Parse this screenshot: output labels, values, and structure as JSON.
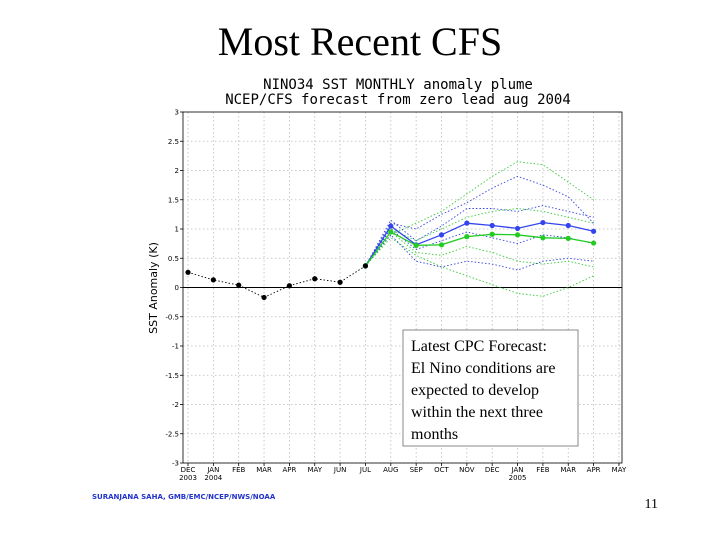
{
  "slide": {
    "title": "Most Recent CFS",
    "credit": "SURANJANA SAHA, GMB/EMC/NCEP/NWS/NOAA",
    "page_number": 11
  },
  "chart_data": {
    "type": "line",
    "title": "NINO34 SST MONTHLY anomaly plume",
    "subtitle": "NCEP/CFS forecast from zero lead aug 2004",
    "y_label": "SST Anomaly (K)",
    "categories": [
      "DEC",
      "JAN",
      "FEB",
      "MAR",
      "APR",
      "MAY",
      "JUN",
      "JUL",
      "AUG",
      "SEP",
      "OCT",
      "NOV",
      "DEC",
      "JAN",
      "FEB",
      "MAR",
      "APR",
      "MAY"
    ],
    "category_years": [
      "2003",
      "2004",
      null,
      null,
      null,
      null,
      null,
      null,
      null,
      null,
      null,
      null,
      null,
      "2005",
      null,
      null,
      null,
      null
    ],
    "ylim": [
      -3,
      3
    ],
    "yticks": [
      -3,
      -2.5,
      -2,
      -1.5,
      -1,
      -0.5,
      0,
      0.5,
      1,
      1.5,
      2,
      2.5,
      3
    ],
    "grid": true,
    "zero_line": true,
    "series": [
      {
        "color": "#33cc33",
        "style": "dotted",
        "markers": false,
        "values": [
          null,
          null,
          null,
          null,
          null,
          null,
          null,
          0.37,
          0.9,
          1.1,
          1.3,
          1.6,
          1.9,
          2.15,
          2.1,
          1.8,
          1.5,
          null
        ]
      },
      {
        "color": "#33cc33",
        "style": "dotted",
        "markers": false,
        "values": [
          null,
          null,
          null,
          null,
          null,
          null,
          null,
          0.37,
          0.85,
          0.55,
          0.35,
          0.2,
          0.05,
          -0.1,
          -0.15,
          0.0,
          0.2,
          null
        ]
      },
      {
        "color": "#33cc33",
        "style": "dotted",
        "markers": false,
        "values": [
          null,
          null,
          null,
          null,
          null,
          null,
          null,
          0.37,
          1.0,
          0.8,
          1.0,
          1.2,
          1.3,
          1.35,
          1.3,
          1.2,
          1.1,
          null
        ]
      },
      {
        "color": "#33cc33",
        "style": "dotted",
        "markers": false,
        "values": [
          null,
          null,
          null,
          null,
          null,
          null,
          null,
          0.37,
          0.95,
          0.6,
          0.55,
          0.7,
          0.6,
          0.45,
          0.4,
          0.45,
          0.35,
          null
        ]
      },
      {
        "color": "#3344dd",
        "style": "dotted",
        "markers": false,
        "values": [
          null,
          null,
          null,
          null,
          null,
          null,
          null,
          0.37,
          1.1,
          1.0,
          1.25,
          1.45,
          1.7,
          1.9,
          1.75,
          1.55,
          1.1,
          null
        ]
      },
      {
        "color": "#3344dd",
        "style": "dotted",
        "markers": false,
        "values": [
          null,
          null,
          null,
          null,
          null,
          null,
          null,
          0.37,
          0.9,
          0.45,
          0.35,
          0.45,
          0.4,
          0.3,
          0.45,
          0.5,
          0.45,
          null
        ]
      },
      {
        "color": "#3344dd",
        "style": "dotted",
        "markers": false,
        "values": [
          null,
          null,
          null,
          null,
          null,
          null,
          null,
          0.37,
          1.15,
          0.8,
          1.05,
          1.35,
          1.35,
          1.3,
          1.4,
          1.3,
          1.2,
          null
        ]
      },
      {
        "color": "#3344dd",
        "style": "dotted",
        "markers": false,
        "values": [
          null,
          null,
          null,
          null,
          null,
          null,
          null,
          0.37,
          1.0,
          0.65,
          0.8,
          0.95,
          0.85,
          0.75,
          0.9,
          0.85,
          0.75,
          null
        ]
      },
      {
        "color": "#3344ee",
        "style": "solid",
        "markers": true,
        "values": [
          null,
          null,
          null,
          null,
          null,
          null,
          null,
          0.37,
          1.05,
          0.73,
          0.9,
          1.1,
          1.06,
          1.01,
          1.11,
          1.06,
          0.96,
          null
        ]
      },
      {
        "color": "#22cc22",
        "style": "solid",
        "markers": true,
        "values": [
          null,
          null,
          null,
          null,
          null,
          null,
          null,
          0.37,
          0.95,
          0.72,
          0.73,
          0.87,
          0.91,
          0.9,
          0.85,
          0.84,
          0.76,
          null
        ]
      },
      {
        "color": "#000000",
        "style": "dotted",
        "markers": true,
        "values": [
          0.26,
          0.13,
          0.04,
          -0.17,
          0.03,
          0.15,
          0.09,
          0.37,
          null,
          null,
          null,
          null,
          null,
          null,
          null,
          null,
          null,
          null
        ]
      }
    ],
    "annotation": {
      "lines": [
        "Latest CPC Forecast:",
        "El Nino conditions are",
        "expected to develop",
        "within the next three",
        "months"
      ]
    }
  }
}
